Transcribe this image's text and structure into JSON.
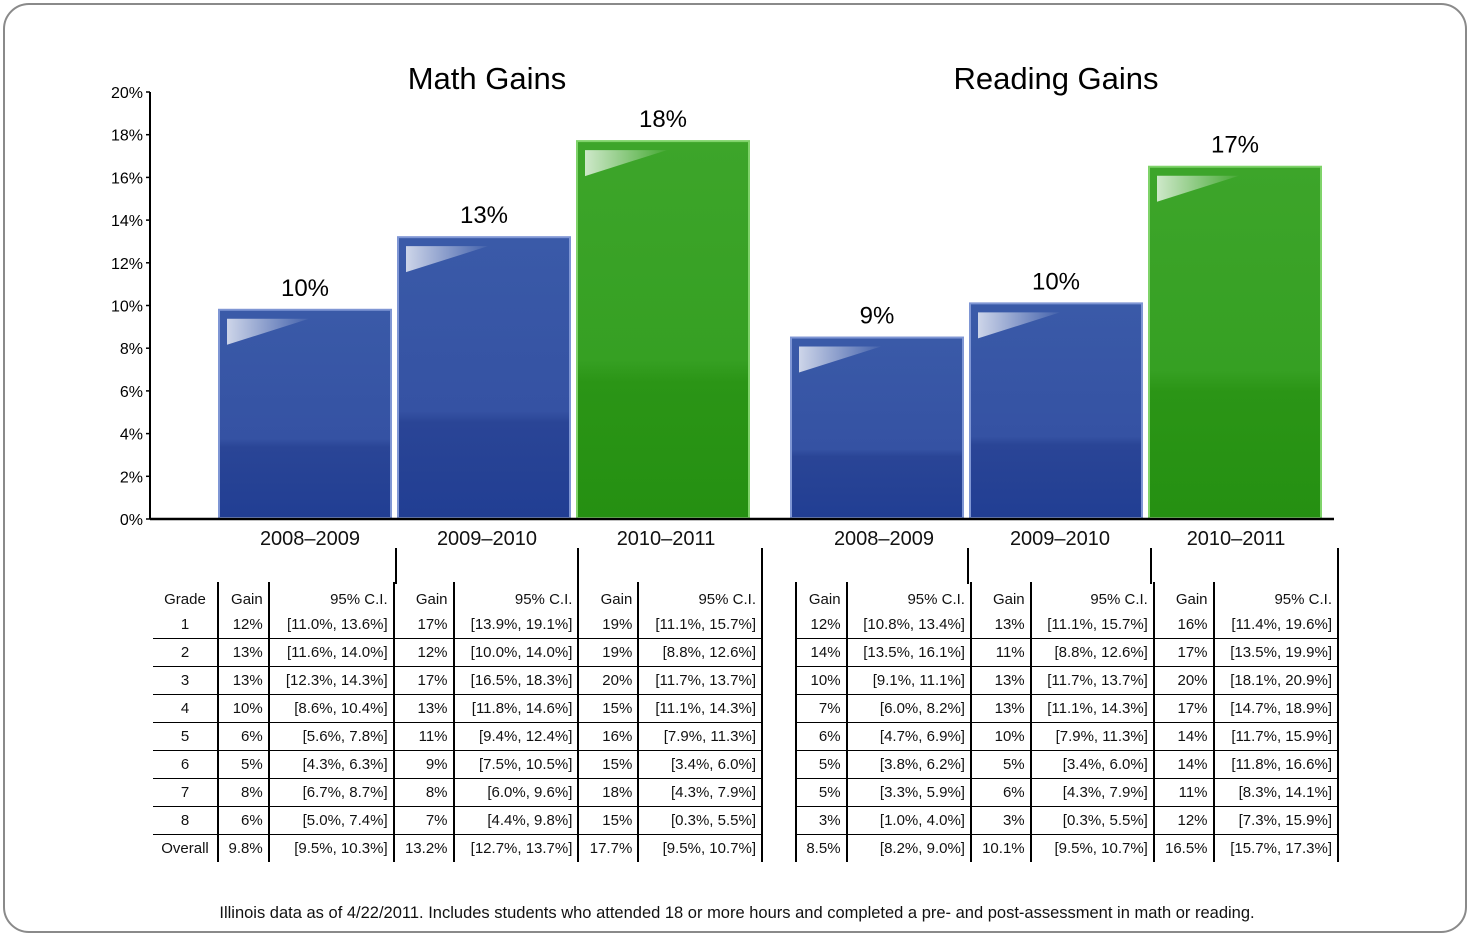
{
  "colors": {
    "blue": "#2f4c9c",
    "green": "#2e9a1a",
    "axis": "#000000"
  },
  "chart_data": [
    {
      "type": "bar",
      "title": "Math Gains",
      "categories": [
        "2008–2009",
        "2009–2010",
        "2010–2011"
      ],
      "values": [
        9.8,
        13.2,
        17.7
      ],
      "data_labels": [
        "10%",
        "13%",
        "18%"
      ],
      "bar_colors": [
        "blue",
        "blue",
        "green"
      ],
      "ylim": [
        0,
        20
      ],
      "y_ticks": [
        "0%",
        "2%",
        "4%",
        "6%",
        "8%",
        "10%",
        "12%",
        "14%",
        "16%",
        "18%",
        "20%"
      ]
    },
    {
      "type": "bar",
      "title": "Reading Gains",
      "categories": [
        "2008–2009",
        "2009–2010",
        "2010–2011"
      ],
      "values": [
        8.5,
        10.1,
        16.5
      ],
      "data_labels": [
        "9%",
        "10%",
        "17%"
      ],
      "bar_colors": [
        "blue",
        "blue",
        "green"
      ],
      "ylim": [
        0,
        20
      ]
    }
  ],
  "tables": {
    "grade_header": "Grade",
    "gain_header": "Gain",
    "ci_header": "95% C.I.",
    "grades": [
      "1",
      "2",
      "3",
      "4",
      "5",
      "6",
      "7",
      "8",
      "Overall"
    ],
    "math": [
      [
        [
          "12%",
          "[11.0%, 13.6%]"
        ],
        [
          "17%",
          "[13.9%, 19.1%]"
        ],
        [
          "19%",
          "[11.1%, 15.7%]"
        ]
      ],
      [
        [
          "13%",
          "[11.6%, 14.0%]"
        ],
        [
          "12%",
          "[10.0%, 14.0%]"
        ],
        [
          "19%",
          "[8.8%, 12.6%]"
        ]
      ],
      [
        [
          "13%",
          "[12.3%, 14.3%]"
        ],
        [
          "17%",
          "[16.5%, 18.3%]"
        ],
        [
          "20%",
          "[11.7%, 13.7%]"
        ]
      ],
      [
        [
          "10%",
          "[8.6%, 10.4%]"
        ],
        [
          "13%",
          "[11.8%, 14.6%]"
        ],
        [
          "15%",
          "[11.1%, 14.3%]"
        ]
      ],
      [
        [
          "6%",
          "[5.6%, 7.8%]"
        ],
        [
          "11%",
          "[9.4%, 12.4%]"
        ],
        [
          "16%",
          "[7.9%, 11.3%]"
        ]
      ],
      [
        [
          "5%",
          "[4.3%, 6.3%]"
        ],
        [
          "9%",
          "[7.5%, 10.5%]"
        ],
        [
          "15%",
          "[3.4%, 6.0%]"
        ]
      ],
      [
        [
          "8%",
          "[6.7%, 8.7%]"
        ],
        [
          "8%",
          "[6.0%, 9.6%]"
        ],
        [
          "18%",
          "[4.3%, 7.9%]"
        ]
      ],
      [
        [
          "6%",
          "[5.0%, 7.4%]"
        ],
        [
          "7%",
          "[4.4%, 9.8%]"
        ],
        [
          "15%",
          "[0.3%, 5.5%]"
        ]
      ],
      [
        [
          "9.8%",
          "[9.5%, 10.3%]"
        ],
        [
          "13.2%",
          "[12.7%, 13.7%]"
        ],
        [
          "17.7%",
          "[9.5%, 10.7%]"
        ]
      ]
    ],
    "reading": [
      [
        [
          "12%",
          "[10.8%, 13.4%]"
        ],
        [
          "13%",
          "[11.1%, 15.7%]"
        ],
        [
          "16%",
          "[11.4%, 19.6%]"
        ]
      ],
      [
        [
          "14%",
          "[13.5%, 16.1%]"
        ],
        [
          "11%",
          "[8.8%, 12.6%]"
        ],
        [
          "17%",
          "[13.5%, 19.9%]"
        ]
      ],
      [
        [
          "10%",
          "[9.1%, 11.1%]"
        ],
        [
          "13%",
          "[11.7%, 13.7%]"
        ],
        [
          "20%",
          "[18.1%, 20.9%]"
        ]
      ],
      [
        [
          "7%",
          "[6.0%, 8.2%]"
        ],
        [
          "13%",
          "[11.1%, 14.3%]"
        ],
        [
          "17%",
          "[14.7%, 18.9%]"
        ]
      ],
      [
        [
          "6%",
          "[4.7%, 6.9%]"
        ],
        [
          "10%",
          "[7.9%, 11.3%]"
        ],
        [
          "14%",
          "[11.7%, 15.9%]"
        ]
      ],
      [
        [
          "5%",
          "[3.8%, 6.2%]"
        ],
        [
          "5%",
          "[3.4%, 6.0%]"
        ],
        [
          "14%",
          "[11.8%, 16.6%]"
        ]
      ],
      [
        [
          "5%",
          "[3.3%, 5.9%]"
        ],
        [
          "6%",
          "[4.3%, 7.9%]"
        ],
        [
          "11%",
          "[8.3%, 14.1%]"
        ]
      ],
      [
        [
          "3%",
          "[1.0%, 4.0%]"
        ],
        [
          "3%",
          "[0.3%, 5.5%]"
        ],
        [
          "12%",
          "[7.3%, 15.9%]"
        ]
      ],
      [
        [
          "8.5%",
          "[8.2%, 9.0%]"
        ],
        [
          "10.1%",
          "[9.5%, 10.7%]"
        ],
        [
          "16.5%",
          "[15.7%, 17.3%]"
        ]
      ]
    ]
  },
  "footnote": "Illinois data as of 4/22/2011. Includes students who attended 18 or more hours and completed a pre- and post-assessment in math or reading."
}
